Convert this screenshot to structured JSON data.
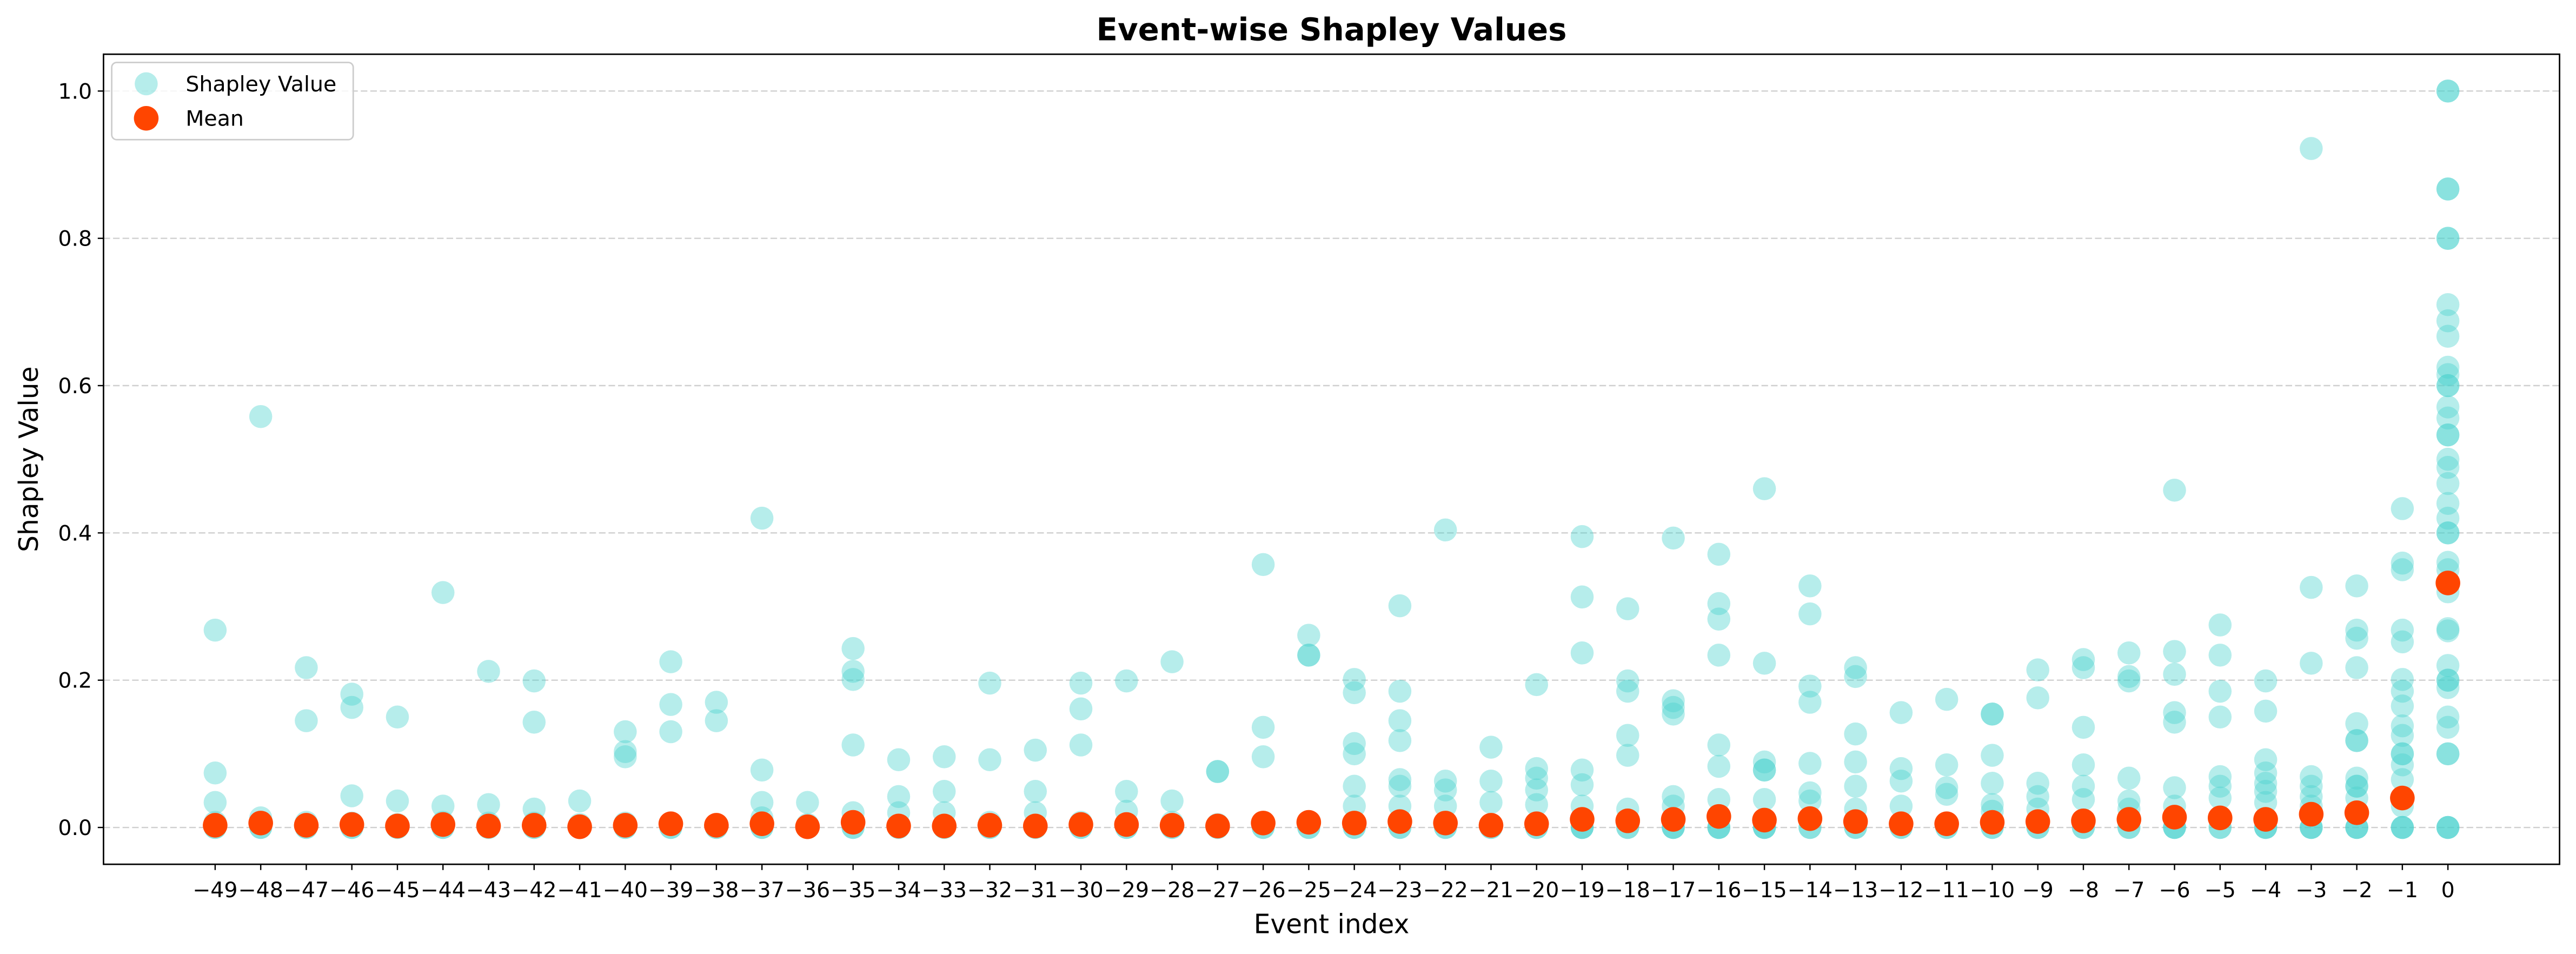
{
  "chart_data": {
    "type": "scatter",
    "title": "Event-wise Shapley Values",
    "xlabel": "Event index",
    "ylabel": "Shapley Value",
    "xlim": [
      -51.45,
      2.45
    ],
    "ylim": [
      -0.05,
      1.05
    ],
    "grid": true,
    "legend_position": "upper left",
    "xticks": [
      -49,
      -48,
      -47,
      -46,
      -45,
      -44,
      -43,
      -42,
      -41,
      -40,
      -39,
      -38,
      -37,
      -36,
      -35,
      -34,
      -33,
      -32,
      -31,
      -30,
      -29,
      -28,
      -27,
      -26,
      -25,
      -24,
      -23,
      -22,
      -21,
      -20,
      -19,
      -18,
      -17,
      -16,
      -15,
      -14,
      -13,
      -12,
      -11,
      -10,
      -9,
      -8,
      -7,
      -6,
      -5,
      -4,
      -3,
      -2,
      -1,
      0
    ],
    "xtick_labels": [
      "−49",
      "−48",
      "−47",
      "−46",
      "−45",
      "−44",
      "−43",
      "−42",
      "−41",
      "−40",
      "−39",
      "−38",
      "−37",
      "−36",
      "−35",
      "−34",
      "−33",
      "−32",
      "−31",
      "−30",
      "−29",
      "−28",
      "−27",
      "−26",
      "−25",
      "−24",
      "−23",
      "−22",
      "−21",
      "−20",
      "−19",
      "−18",
      "−17",
      "−16",
      "−15",
      "−14",
      "−13",
      "−12",
      "−11",
      "−10",
      "−9",
      "−8",
      "−7",
      "−6",
      "−5",
      "−4",
      "−3",
      "−2",
      "−1",
      "0"
    ],
    "yticks": [
      0.0,
      0.2,
      0.4,
      0.6,
      0.8,
      1.0
    ],
    "ytick_labels": [
      "0.0",
      "0.2",
      "0.4",
      "0.6",
      "0.8",
      "1.0"
    ],
    "series": [
      {
        "name": "Shapley Value",
        "color": "#48D1CC",
        "alpha": 0.4,
        "points_by_event": [
          {
            "x": -49,
            "y": [
              0.268,
              0.074,
              0.034,
              0.007,
              0.0,
              0.0
            ]
          },
          {
            "x": -48,
            "y": [
              0.558,
              0.013,
              0.006,
              0.0,
              0.0
            ]
          },
          {
            "x": -47,
            "y": [
              0.217,
              0.145,
              0.007,
              0.0,
              0.0
            ]
          },
          {
            "x": -46,
            "y": [
              0.181,
              0.163,
              0.043,
              0.006,
              0.0,
              0.0
            ]
          },
          {
            "x": -45,
            "y": [
              0.15,
              0.036,
              0.004,
              0.0,
              0.0
            ]
          },
          {
            "x": -44,
            "y": [
              0.319,
              0.029,
              0.007,
              0.0,
              0.0
            ]
          },
          {
            "x": -43,
            "y": [
              0.212,
              0.031,
              0.006,
              0.0,
              0.0
            ]
          },
          {
            "x": -42,
            "y": [
              0.199,
              0.143,
              0.025,
              0.006,
              0.0,
              0.0
            ]
          },
          {
            "x": -41,
            "y": [
              0.036,
              0.004,
              0.0,
              0.0
            ]
          },
          {
            "x": -40,
            "y": [
              0.13,
              0.103,
              0.096,
              0.006,
              0.0,
              0.0
            ]
          },
          {
            "x": -39,
            "y": [
              0.225,
              0.167,
              0.13,
              0.006,
              0.0,
              0.0
            ]
          },
          {
            "x": -38,
            "y": [
              0.17,
              0.145,
              0.004,
              0.0,
              0.0
            ]
          },
          {
            "x": -37,
            "y": [
              0.42,
              0.078,
              0.034,
              0.013,
              0.0,
              0.0
            ]
          },
          {
            "x": -36,
            "y": [
              0.034,
              0.004,
              0.0,
              0.0
            ]
          },
          {
            "x": -35,
            "y": [
              0.243,
              0.212,
              0.201,
              0.112,
              0.02,
              0.0,
              0.0
            ]
          },
          {
            "x": -34,
            "y": [
              0.092,
              0.042,
              0.02,
              0.0,
              0.0
            ]
          },
          {
            "x": -33,
            "y": [
              0.096,
              0.049,
              0.02,
              0.0,
              0.0
            ]
          },
          {
            "x": -32,
            "y": [
              0.196,
              0.092,
              0.007,
              0.0,
              0.0
            ]
          },
          {
            "x": -31,
            "y": [
              0.105,
              0.049,
              0.02,
              0.0,
              0.0
            ]
          },
          {
            "x": -30,
            "y": [
              0.196,
              0.161,
              0.112,
              0.007,
              0.0,
              0.0
            ]
          },
          {
            "x": -29,
            "y": [
              0.199,
              0.049,
              0.022,
              0.0,
              0.0
            ]
          },
          {
            "x": -28,
            "y": [
              0.225,
              0.036,
              0.007,
              0.0,
              0.0
            ]
          },
          {
            "x": -27,
            "y": [
              0.076,
              0.076,
              0.004,
              0.0,
              0.0
            ]
          },
          {
            "x": -26,
            "y": [
              0.357,
              0.136,
              0.096,
              0.007,
              0.0,
              0.0
            ]
          },
          {
            "x": -25,
            "y": [
              0.261,
              0.234,
              0.234,
              0.007,
              0.0,
              0.0
            ]
          },
          {
            "x": -24,
            "y": [
              0.201,
              0.183,
              0.114,
              0.1,
              0.056,
              0.029,
              0.0,
              0.0
            ]
          },
          {
            "x": -23,
            "y": [
              0.301,
              0.185,
              0.145,
              0.118,
              0.065,
              0.056,
              0.029,
              0.0,
              0.0
            ]
          },
          {
            "x": -22,
            "y": [
              0.404,
              0.063,
              0.051,
              0.029,
              0.0,
              0.0
            ]
          },
          {
            "x": -21,
            "y": [
              0.109,
              0.063,
              0.034,
              0.0,
              0.0
            ]
          },
          {
            "x": -20,
            "y": [
              0.194,
              0.08,
              0.067,
              0.051,
              0.031,
              0.0,
              0.0
            ]
          },
          {
            "x": -19,
            "y": [
              0.395,
              0.313,
              0.237,
              0.078,
              0.058,
              0.029,
              0.0,
              0.0,
              0.0
            ]
          },
          {
            "x": -18,
            "y": [
              0.297,
              0.199,
              0.185,
              0.125,
              0.098,
              0.025,
              0.0,
              0.0
            ]
          },
          {
            "x": -17,
            "y": [
              0.393,
              0.172,
              0.163,
              0.154,
              0.042,
              0.029,
              0.0,
              0.0,
              0.0
            ]
          },
          {
            "x": -16,
            "y": [
              0.371,
              0.304,
              0.283,
              0.234,
              0.112,
              0.083,
              0.038,
              0.0,
              0.0,
              0.0
            ]
          },
          {
            "x": -15,
            "y": [
              0.46,
              0.223,
              0.089,
              0.078,
              0.078,
              0.038,
              0.0,
              0.0,
              0.0
            ]
          },
          {
            "x": -14,
            "y": [
              0.328,
              0.29,
              0.192,
              0.17,
              0.087,
              0.047,
              0.036,
              0.0,
              0.0
            ]
          },
          {
            "x": -13,
            "y": [
              0.217,
              0.205,
              0.127,
              0.089,
              0.056,
              0.025,
              0.0,
              0.0
            ]
          },
          {
            "x": -12,
            "y": [
              0.156,
              0.08,
              0.063,
              0.029,
              0.0,
              0.0
            ]
          },
          {
            "x": -11,
            "y": [
              0.174,
              0.085,
              0.054,
              0.045,
              0.0,
              0.0
            ]
          },
          {
            "x": -10,
            "y": [
              0.154,
              0.154,
              0.098,
              0.06,
              0.031,
              0.022,
              0.0,
              0.0
            ]
          },
          {
            "x": -9,
            "y": [
              0.214,
              0.176,
              0.06,
              0.042,
              0.025,
              0.0,
              0.0
            ]
          },
          {
            "x": -8,
            "y": [
              0.228,
              0.217,
              0.136,
              0.085,
              0.056,
              0.038,
              0.0,
              0.0
            ]
          },
          {
            "x": -7,
            "y": [
              0.237,
              0.205,
              0.199,
              0.067,
              0.036,
              0.025,
              0.0,
              0.0
            ]
          },
          {
            "x": -6,
            "y": [
              0.458,
              0.239,
              0.208,
              0.156,
              0.143,
              0.054,
              0.029,
              0.0,
              0.0,
              0.0
            ]
          },
          {
            "x": -5,
            "y": [
              0.275,
              0.234,
              0.185,
              0.15,
              0.069,
              0.056,
              0.04,
              0.0,
              0.0
            ]
          },
          {
            "x": -4,
            "y": [
              0.199,
              0.158,
              0.092,
              0.074,
              0.06,
              0.049,
              0.034,
              0.0,
              0.0,
              0.0
            ]
          },
          {
            "x": -3,
            "y": [
              0.922,
              0.326,
              0.223,
              0.069,
              0.056,
              0.042,
              0.029,
              0.0,
              0.0,
              0.0
            ]
          },
          {
            "x": -2,
            "y": [
              0.328,
              0.268,
              0.257,
              0.217,
              0.141,
              0.118,
              0.118,
              0.067,
              0.056,
              0.056,
              0.04,
              0.0,
              0.0,
              0.0
            ]
          },
          {
            "x": -1,
            "y": [
              0.433,
              0.359,
              0.35,
              0.268,
              0.252,
              0.201,
              0.185,
              0.165,
              0.138,
              0.125,
              0.1,
              0.1,
              0.085,
              0.065,
              0.029,
              0.0,
              0.0,
              0.0
            ]
          },
          {
            "x": 0,
            "y": [
              1.0,
              1.0,
              0.867,
              0.867,
              0.8,
              0.8,
              0.71,
              0.688,
              0.667,
              0.625,
              0.615,
              0.6,
              0.6,
              0.571,
              0.556,
              0.533,
              0.533,
              0.5,
              0.489,
              0.467,
              0.44,
              0.42,
              0.4,
              0.4,
              0.36,
              0.35,
              0.333,
              0.32,
              0.27,
              0.267,
              0.22,
              0.2,
              0.2,
              0.19,
              0.15,
              0.136,
              0.1,
              0.1,
              0.0,
              0.0,
              0.0
            ]
          }
        ]
      },
      {
        "name": "Mean",
        "color": "#FF4500",
        "x": [
          -49,
          -48,
          -47,
          -46,
          -45,
          -44,
          -43,
          -42,
          -41,
          -40,
          -39,
          -38,
          -37,
          -36,
          -35,
          -34,
          -33,
          -32,
          -31,
          -30,
          -29,
          -28,
          -27,
          -26,
          -25,
          -24,
          -23,
          -22,
          -21,
          -20,
          -19,
          -18,
          -17,
          -16,
          -15,
          -14,
          -13,
          -12,
          -11,
          -10,
          -9,
          -8,
          -7,
          -6,
          -5,
          -4,
          -3,
          -2,
          -1,
          0
        ],
        "y": [
          0.003,
          0.006,
          0.003,
          0.004,
          0.002,
          0.004,
          0.002,
          0.003,
          0.001,
          0.003,
          0.005,
          0.003,
          0.005,
          0.001,
          0.007,
          0.002,
          0.002,
          0.003,
          0.002,
          0.004,
          0.004,
          0.003,
          0.002,
          0.006,
          0.007,
          0.006,
          0.008,
          0.006,
          0.003,
          0.005,
          0.011,
          0.009,
          0.011,
          0.015,
          0.01,
          0.012,
          0.008,
          0.005,
          0.005,
          0.007,
          0.008,
          0.009,
          0.011,
          0.014,
          0.013,
          0.011,
          0.018,
          0.02,
          0.04,
          0.332
        ]
      }
    ]
  }
}
